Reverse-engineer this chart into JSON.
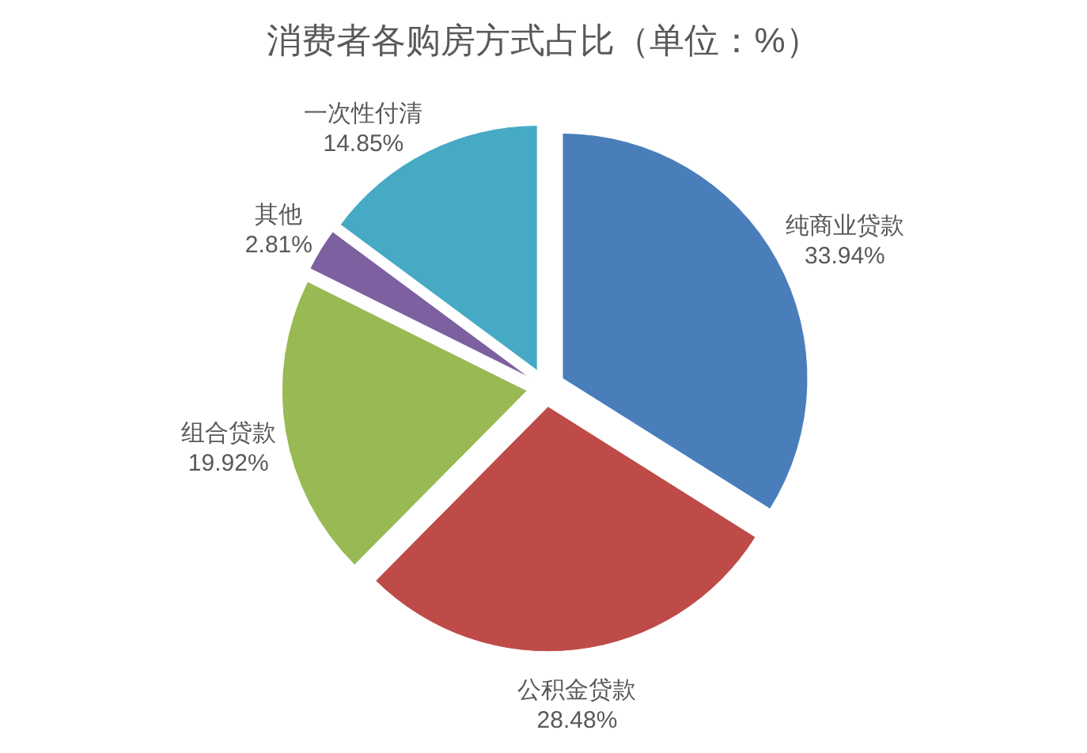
{
  "chart_data": {
    "type": "pie",
    "title": "消费者各购房方式占比（单位：%）",
    "categories": [
      "纯商业贷款",
      "公积金贷款",
      "组合贷款",
      "其他",
      "一次性付清"
    ],
    "values": [
      33.94,
      28.48,
      19.92,
      2.81,
      14.85
    ],
    "value_labels": [
      "33.94%",
      "28.48%",
      "19.92%",
      "2.81%",
      "14.85%"
    ],
    "colors": [
      "#4a7ebb",
      "#be4b48",
      "#98b954",
      "#7d60a0",
      "#46aac5"
    ]
  }
}
